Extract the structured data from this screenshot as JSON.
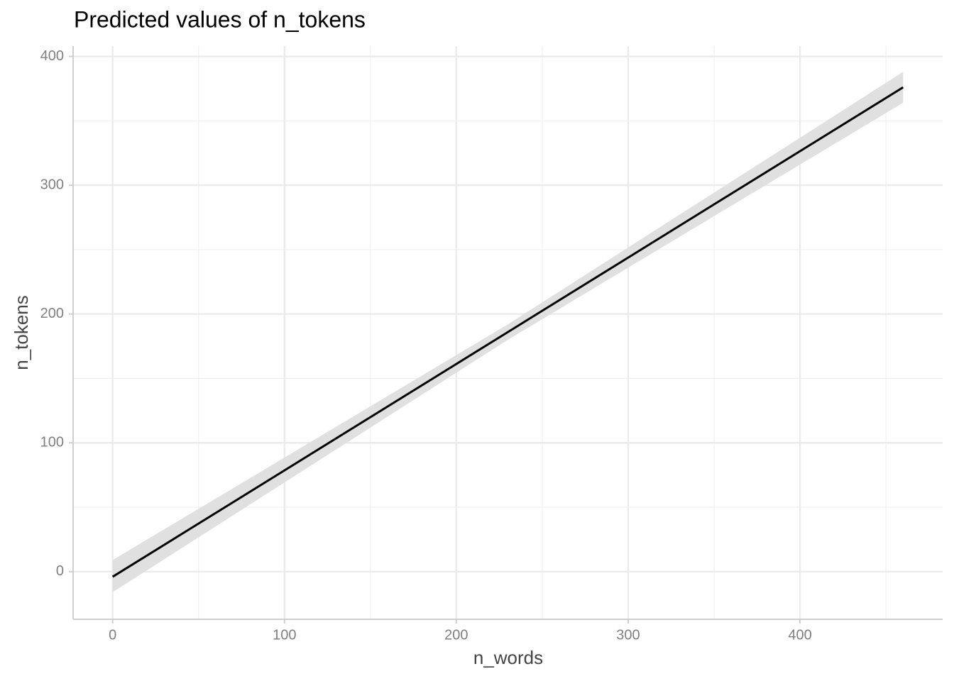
{
  "chart_data": {
    "type": "line",
    "title": "Predicted values of n_tokens",
    "xlabel": "n_words",
    "ylabel": "n_tokens",
    "x": [
      0,
      230,
      460
    ],
    "series": [
      {
        "color": "#000000",
        "values": [
          -4,
          186,
          376
        ]
      }
    ],
    "band": {
      "color": "#e0e0e0",
      "lower": [
        -16,
        180,
        364
      ],
      "upper": [
        9,
        192,
        388
      ]
    },
    "xlim": [
      -23,
      483
    ],
    "ylim": [
      -37,
      408
    ],
    "xticks": [
      0,
      100,
      200,
      300,
      400
    ],
    "yticks": [
      0,
      100,
      200,
      300,
      400
    ],
    "xminor": [
      50,
      150,
      250,
      350,
      450
    ],
    "yminor": [
      50,
      150,
      250,
      350
    ],
    "grid": true
  }
}
